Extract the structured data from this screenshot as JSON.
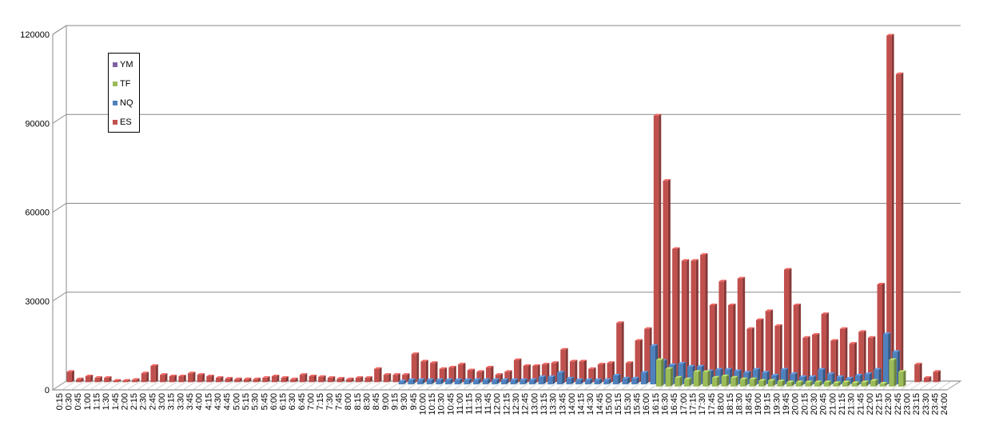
{
  "chart_data": {
    "type": "bar",
    "style": "3d-clustered-column",
    "title": "",
    "xlabel": "",
    "ylabel": "",
    "ylim": [
      0,
      120000
    ],
    "yticks": [
      0,
      30000,
      60000,
      90000,
      120000
    ],
    "grid": true,
    "legend_position": "upper-left",
    "categories": [
      "0:15",
      "0:30",
      "0:45",
      "1:00",
      "1:15",
      "1:30",
      "1:45",
      "2:00",
      "2:15",
      "2:30",
      "2:45",
      "3:00",
      "3:15",
      "3:30",
      "3:45",
      "4:00",
      "4:15",
      "4:30",
      "4:45",
      "5:00",
      "5:15",
      "5:30",
      "5:45",
      "6:00",
      "6:15",
      "6:30",
      "6:45",
      "7:00",
      "7:15",
      "7:30",
      "7:45",
      "8:00",
      "8:15",
      "8:30",
      "8:45",
      "9:00",
      "9:15",
      "9:30",
      "9:45",
      "10:00",
      "10:15",
      "10:30",
      "10:45",
      "11:00",
      "11:15",
      "11:30",
      "11:45",
      "12:00",
      "12:15",
      "12:30",
      "12:45",
      "13:00",
      "13:15",
      "13:30",
      "13:45",
      "14:00",
      "14:15",
      "14:30",
      "14:45",
      "15:00",
      "15:15",
      "15:30",
      "15:45",
      "16:00",
      "16:15",
      "16:30",
      "16:45",
      "17:00",
      "17:15",
      "17:30",
      "17:45",
      "18:00",
      "18:15",
      "18:30",
      "18:45",
      "19:00",
      "19:15",
      "19:30",
      "19:45",
      "20:00",
      "20:15",
      "20:30",
      "20:45",
      "21:00",
      "21:15",
      "21:30",
      "21:45",
      "22:00",
      "22:15",
      "22:30",
      "22:45",
      "23:00",
      "23:15",
      "23:30",
      "23:45",
      "24:00"
    ],
    "series": [
      {
        "name": "YM",
        "color": "#7e62a3",
        "values": [
          0,
          0,
          0,
          0,
          0,
          0,
          0,
          0,
          0,
          0,
          0,
          0,
          0,
          0,
          0,
          0,
          0,
          0,
          0,
          0,
          0,
          0,
          0,
          0,
          0,
          0,
          0,
          0,
          0,
          0,
          0,
          0,
          0,
          0,
          0,
          0,
          0,
          0,
          0,
          0,
          0,
          0,
          0,
          0,
          0,
          0,
          0,
          0,
          0,
          0,
          0,
          0,
          0,
          0,
          0,
          0,
          0,
          0,
          0,
          0,
          0,
          0,
          0,
          0,
          0,
          0,
          0,
          0,
          0,
          0,
          0,
          0,
          0,
          0,
          0,
          0,
          0,
          0,
          0,
          0,
          0,
          0,
          0,
          0,
          0,
          0,
          0,
          0,
          0,
          0,
          0,
          0,
          0,
          0,
          0,
          0
        ]
      },
      {
        "name": "TF",
        "color": "#9bbb59",
        "values": [
          0,
          0,
          0,
          0,
          0,
          0,
          0,
          0,
          0,
          0,
          0,
          0,
          0,
          0,
          0,
          0,
          0,
          0,
          0,
          0,
          0,
          0,
          0,
          0,
          0,
          0,
          0,
          0,
          0,
          0,
          0,
          0,
          0,
          0,
          0,
          0,
          0,
          0,
          0,
          0,
          0,
          0,
          0,
          0,
          0,
          0,
          0,
          0,
          0,
          0,
          0,
          0,
          0,
          0,
          0,
          0,
          0,
          0,
          0,
          0,
          0,
          0,
          0,
          0,
          9000,
          6000,
          3000,
          2500,
          5000,
          5000,
          3000,
          3500,
          3000,
          2500,
          2500,
          2000,
          2000,
          1800,
          1500,
          1500,
          1500,
          1500,
          1500,
          1200,
          1500,
          1200,
          1500,
          2000,
          1000,
          9000,
          5000,
          0,
          0,
          0,
          0,
          0
        ]
      },
      {
        "name": "NQ",
        "color": "#4f81bd",
        "values": [
          0,
          0,
          0,
          0,
          0,
          0,
          0,
          0,
          0,
          0,
          0,
          0,
          0,
          0,
          0,
          0,
          0,
          0,
          0,
          0,
          0,
          0,
          0,
          0,
          0,
          0,
          0,
          0,
          0,
          0,
          0,
          0,
          0,
          0,
          0,
          0,
          1000,
          1500,
          1500,
          1500,
          1500,
          1500,
          1500,
          1500,
          1500,
          1500,
          1500,
          1500,
          1500,
          1500,
          1500,
          2500,
          2500,
          4000,
          2000,
          1500,
          1500,
          1500,
          1500,
          3000,
          2000,
          2000,
          4000,
          13000,
          8000,
          6500,
          7000,
          6000,
          6000,
          4500,
          5000,
          5000,
          4500,
          4000,
          5000,
          4000,
          3000,
          5000,
          3500,
          2500,
          2500,
          5000,
          3500,
          2500,
          2000,
          3000,
          3500,
          5000,
          17000,
          11000,
          0,
          0,
          0,
          0,
          0,
          0
        ]
      },
      {
        "name": "ES",
        "color": "#c0504d",
        "values": [
          3500,
          1000,
          2000,
          1500,
          1500,
          500,
          500,
          800,
          3000,
          5500,
          2500,
          2000,
          2000,
          3000,
          2500,
          2000,
          1500,
          1200,
          1000,
          1000,
          1000,
          1500,
          2000,
          1500,
          1000,
          2500,
          2000,
          1800,
          1500,
          1200,
          1000,
          1500,
          1500,
          4500,
          2500,
          2500,
          2500,
          9500,
          7000,
          6500,
          4500,
          5000,
          6000,
          4000,
          3500,
          5000,
          2500,
          3500,
          7500,
          5500,
          5500,
          6000,
          6500,
          11000,
          7000,
          7000,
          4500,
          6000,
          6500,
          20000,
          6500,
          14000,
          18000,
          90000,
          68000,
          45000,
          41000,
          41000,
          43000,
          26000,
          34000,
          26000,
          35000,
          18000,
          21000,
          24000,
          19000,
          38000,
          26000,
          15000,
          16000,
          23000,
          14000,
          18000,
          13000,
          17000,
          15000,
          33000,
          117000,
          104000,
          0,
          6000,
          1500,
          3500,
          0,
          0
        ]
      }
    ]
  },
  "legend": {
    "items": [
      {
        "label": "YM",
        "color": "#7e62a3"
      },
      {
        "label": "TF",
        "color": "#9bbb59"
      },
      {
        "label": "NQ",
        "color": "#4f81bd"
      },
      {
        "label": "ES",
        "color": "#c0504d"
      }
    ]
  }
}
